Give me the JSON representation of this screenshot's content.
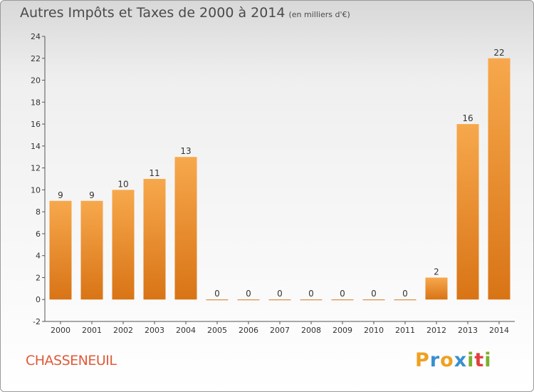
{
  "header": {
    "title": "Autres Impôts et Taxes de 2000 à 2014",
    "unit": "(en milliers d'€)"
  },
  "commune": "CHASSENEUIL",
  "logo": {
    "letters": [
      "P",
      "r",
      "o",
      "x",
      "i",
      "t",
      "i"
    ],
    "colors": [
      "#f0a020",
      "#3a8fd0",
      "#f0a020",
      "#3a8fd0",
      "#7ab030",
      "#e04040",
      "#7ab030"
    ]
  },
  "colors": {
    "bar_light": "#f7a84c",
    "bar_dark": "#d87416",
    "axis": "#555555",
    "text": "#333333"
  },
  "chart_data": {
    "type": "bar",
    "title": "Autres Impôts et Taxes de 2000 à 2014",
    "ylabel": "",
    "xlabel": "",
    "categories": [
      "2000",
      "2001",
      "2002",
      "2003",
      "2004",
      "2005",
      "2006",
      "2007",
      "2008",
      "2009",
      "2010",
      "2011",
      "2012",
      "2013",
      "2014"
    ],
    "values": [
      9,
      9,
      10,
      11,
      13,
      0,
      0,
      0,
      0,
      0,
      0,
      0,
      2,
      16,
      22
    ],
    "data_labels": [
      "9",
      "9",
      "10",
      "11",
      "13",
      "0",
      "0",
      "0",
      "0",
      "0",
      "0",
      "0",
      "2",
      "16",
      "22"
    ],
    "ylim": [
      -2,
      24
    ],
    "yticks": [
      -2,
      0,
      2,
      4,
      6,
      8,
      10,
      12,
      14,
      16,
      18,
      20,
      22,
      24
    ],
    "grid": false,
    "legend": "none"
  }
}
